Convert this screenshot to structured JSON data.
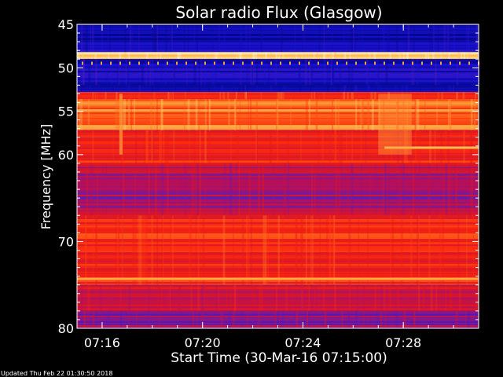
{
  "chart_data": {
    "type": "heatmap",
    "title": "Solar radio Flux (Glasgow)",
    "xlabel": "Start Time (30-Mar-16 07:15:00)",
    "ylabel": "Frequency [MHz]",
    "x_range": [
      "07:15:00",
      "07:31:00"
    ],
    "y_range_mhz": [
      45,
      80
    ],
    "y_axis_inverted": true,
    "x_ticks": [
      "07:16",
      "07:20",
      "07:24",
      "07:28"
    ],
    "y_ticks": [
      45,
      50,
      55,
      60,
      70,
      80
    ],
    "colormap": [
      "#06088c",
      "#1a12d8",
      "#5a1fb8",
      "#b01060",
      "#e61818",
      "#ff3010",
      "#ff7a20",
      "#ffd060",
      "#fff4d0"
    ],
    "bands_mhz": [
      {
        "from": 45.0,
        "to": 48.2,
        "level": 0.05
      },
      {
        "from": 48.2,
        "to": 49.0,
        "level": 0.95
      },
      {
        "from": 49.0,
        "to": 52.0,
        "level": 0.08
      },
      {
        "from": 52.0,
        "to": 52.8,
        "level": 0.04
      },
      {
        "from": 52.8,
        "to": 53.6,
        "level": 0.65
      },
      {
        "from": 53.6,
        "to": 57.2,
        "level": 0.72
      },
      {
        "from": 57.2,
        "to": 61.0,
        "level": 0.55
      },
      {
        "from": 61.0,
        "to": 67.0,
        "level": 0.38
      },
      {
        "from": 67.0,
        "to": 75.0,
        "level": 0.58
      },
      {
        "from": 75.0,
        "to": 78.0,
        "level": 0.45
      },
      {
        "from": 78.0,
        "to": 80.0,
        "level": 0.32
      }
    ],
    "features": [
      {
        "kind": "horizontal_line",
        "freq_mhz": 59.2,
        "from": "07:27:15",
        "to": "07:31:00",
        "level": 0.85
      },
      {
        "kind": "vertical_burst",
        "time": "07:16:45",
        "from_mhz": 53.0,
        "to_mhz": 60.0,
        "level": 0.8
      },
      {
        "kind": "enhancement",
        "from": "07:27:00",
        "to": "07:28:20",
        "from_mhz": 53.0,
        "to_mhz": 60.0,
        "level": 0.8
      },
      {
        "kind": "horizontal_line",
        "freq_mhz": 74.3,
        "from": "07:15:00",
        "to": "07:31:00",
        "level": 0.82
      }
    ]
  },
  "footer": {
    "updated": "Updated Thu Feb 22 01:30:50 2018"
  }
}
